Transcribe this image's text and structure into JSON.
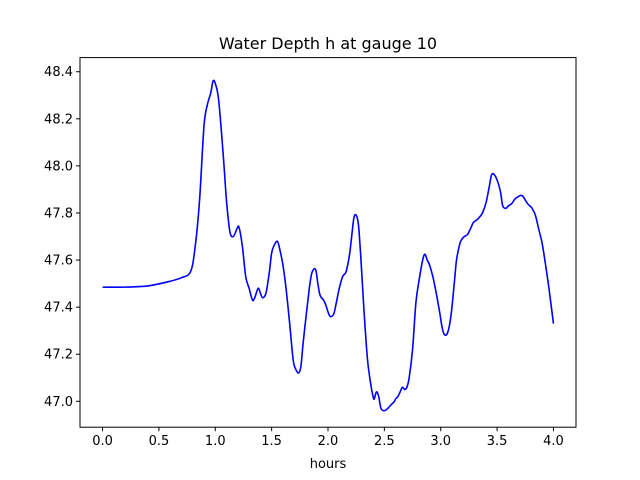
{
  "chart_data": {
    "type": "line",
    "title": "Water Depth h at gauge 10",
    "xlabel": "hours",
    "ylabel": "",
    "xlim": [
      -0.2,
      4.2
    ],
    "ylim": [
      46.89,
      48.46
    ],
    "xticks": [
      0.0,
      0.5,
      1.0,
      1.5,
      2.0,
      2.5,
      3.0,
      3.5,
      4.0
    ],
    "xtick_labels": [
      "0.0",
      "0.5",
      "1.0",
      "1.5",
      "2.0",
      "2.5",
      "3.0",
      "3.5",
      "4.0"
    ],
    "yticks": [
      47.0,
      47.2,
      47.4,
      47.6,
      47.8,
      48.0,
      48.2,
      48.4
    ],
    "ytick_labels": [
      "47.0",
      "47.2",
      "47.4",
      "47.6",
      "47.8",
      "48.0",
      "48.2",
      "48.4"
    ],
    "grid": false,
    "legend": "none",
    "series": [
      {
        "color": "#0000ff",
        "x": [
          0.0,
          0.2,
          0.4,
          0.6,
          0.7,
          0.78,
          0.82,
          0.86,
          0.9,
          0.93,
          0.96,
          0.98,
          1.0,
          1.03,
          1.07,
          1.1,
          1.13,
          1.16,
          1.19,
          1.21,
          1.24,
          1.27,
          1.3,
          1.33,
          1.35,
          1.38,
          1.4,
          1.42,
          1.45,
          1.48,
          1.5,
          1.52,
          1.55,
          1.57,
          1.6,
          1.63,
          1.66,
          1.69,
          1.71,
          1.74,
          1.76,
          1.78,
          1.81,
          1.84,
          1.86,
          1.89,
          1.91,
          1.93,
          1.96,
          1.98,
          2.0,
          2.02,
          2.05,
          2.07,
          2.1,
          2.13,
          2.16,
          2.19,
          2.21,
          2.23,
          2.25,
          2.27,
          2.29,
          2.32,
          2.35,
          2.38,
          2.4,
          2.41,
          2.43,
          2.45,
          2.47,
          2.5,
          2.53,
          2.55,
          2.57,
          2.59,
          2.6,
          2.62,
          2.64,
          2.66,
          2.68,
          2.7,
          2.72,
          2.75,
          2.78,
          2.81,
          2.84,
          2.86,
          2.88,
          2.9,
          2.93,
          2.96,
          2.99,
          3.01,
          3.03,
          3.06,
          3.09,
          3.12,
          3.14,
          3.17,
          3.19,
          3.21,
          3.24,
          3.27,
          3.29,
          3.32,
          3.34,
          3.37,
          3.4,
          3.43,
          3.45,
          3.47,
          3.5,
          3.53,
          3.55,
          3.58,
          3.6,
          3.63,
          3.66,
          3.69,
          3.71,
          3.73,
          3.75,
          3.77,
          3.79,
          3.81,
          3.84,
          3.87,
          3.9,
          3.93,
          3.96,
          4.0
        ],
        "y": [
          47.485,
          47.485,
          47.49,
          47.51,
          47.525,
          47.55,
          47.65,
          47.85,
          48.17,
          48.26,
          48.31,
          48.36,
          48.35,
          48.28,
          48.05,
          47.85,
          47.72,
          47.7,
          47.73,
          47.74,
          47.66,
          47.53,
          47.48,
          47.43,
          47.44,
          47.48,
          47.46,
          47.44,
          47.46,
          47.55,
          47.63,
          47.66,
          47.68,
          47.65,
          47.58,
          47.47,
          47.33,
          47.18,
          47.14,
          47.12,
          47.15,
          47.25,
          47.38,
          47.5,
          47.55,
          47.56,
          47.5,
          47.45,
          47.43,
          47.41,
          47.38,
          47.36,
          47.37,
          47.41,
          47.48,
          47.53,
          47.55,
          47.62,
          47.7,
          47.78,
          47.79,
          47.75,
          47.62,
          47.38,
          47.18,
          47.07,
          47.02,
          47.01,
          47.04,
          47.02,
          46.97,
          46.96,
          46.97,
          46.98,
          46.99,
          47.0,
          47.01,
          47.02,
          47.04,
          47.06,
          47.05,
          47.06,
          47.1,
          47.22,
          47.42,
          47.52,
          47.6,
          47.625,
          47.6,
          47.58,
          47.53,
          47.46,
          47.38,
          47.32,
          47.285,
          47.29,
          47.36,
          47.5,
          47.6,
          47.67,
          47.69,
          47.7,
          47.71,
          47.74,
          47.76,
          47.77,
          47.78,
          47.8,
          47.84,
          47.91,
          47.96,
          47.965,
          47.94,
          47.89,
          47.83,
          47.82,
          47.83,
          47.84,
          47.86,
          47.87,
          47.875,
          47.87,
          47.855,
          47.84,
          47.83,
          47.82,
          47.79,
          47.73,
          47.67,
          47.58,
          47.48,
          47.33
        ]
      }
    ]
  }
}
